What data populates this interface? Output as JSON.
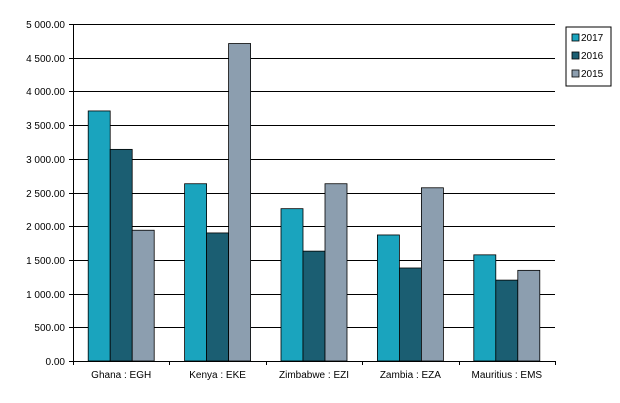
{
  "chart_data": {
    "type": "bar",
    "categories": [
      "Ghana : EGH",
      "Kenya : EKE",
      "Zimbabwe : EZI",
      "Zambia : EZA",
      "Mauritius : EMS"
    ],
    "series": [
      {
        "name": "2017",
        "color": "#1aa4be",
        "values": [
          3710,
          2630,
          2260,
          1870,
          1575
        ]
      },
      {
        "name": "2016",
        "color": "#1b5e72",
        "values": [
          3140,
          1900,
          1630,
          1380,
          1200
        ]
      },
      {
        "name": "2015",
        "color": "#8c9eaf",
        "values": [
          1940,
          4710,
          2630,
          2570,
          1345
        ]
      }
    ],
    "yticks": [
      "0.00",
      "500.00",
      "1 000.00",
      "1 500.00",
      "2 000.00",
      "2 500.00",
      "3 000.00",
      "3 500.00",
      "4 000.00",
      "4 500.00",
      "5 000.00"
    ],
    "ylim": [
      0,
      5000
    ],
    "grid": true,
    "legend_position": "top-right"
  }
}
